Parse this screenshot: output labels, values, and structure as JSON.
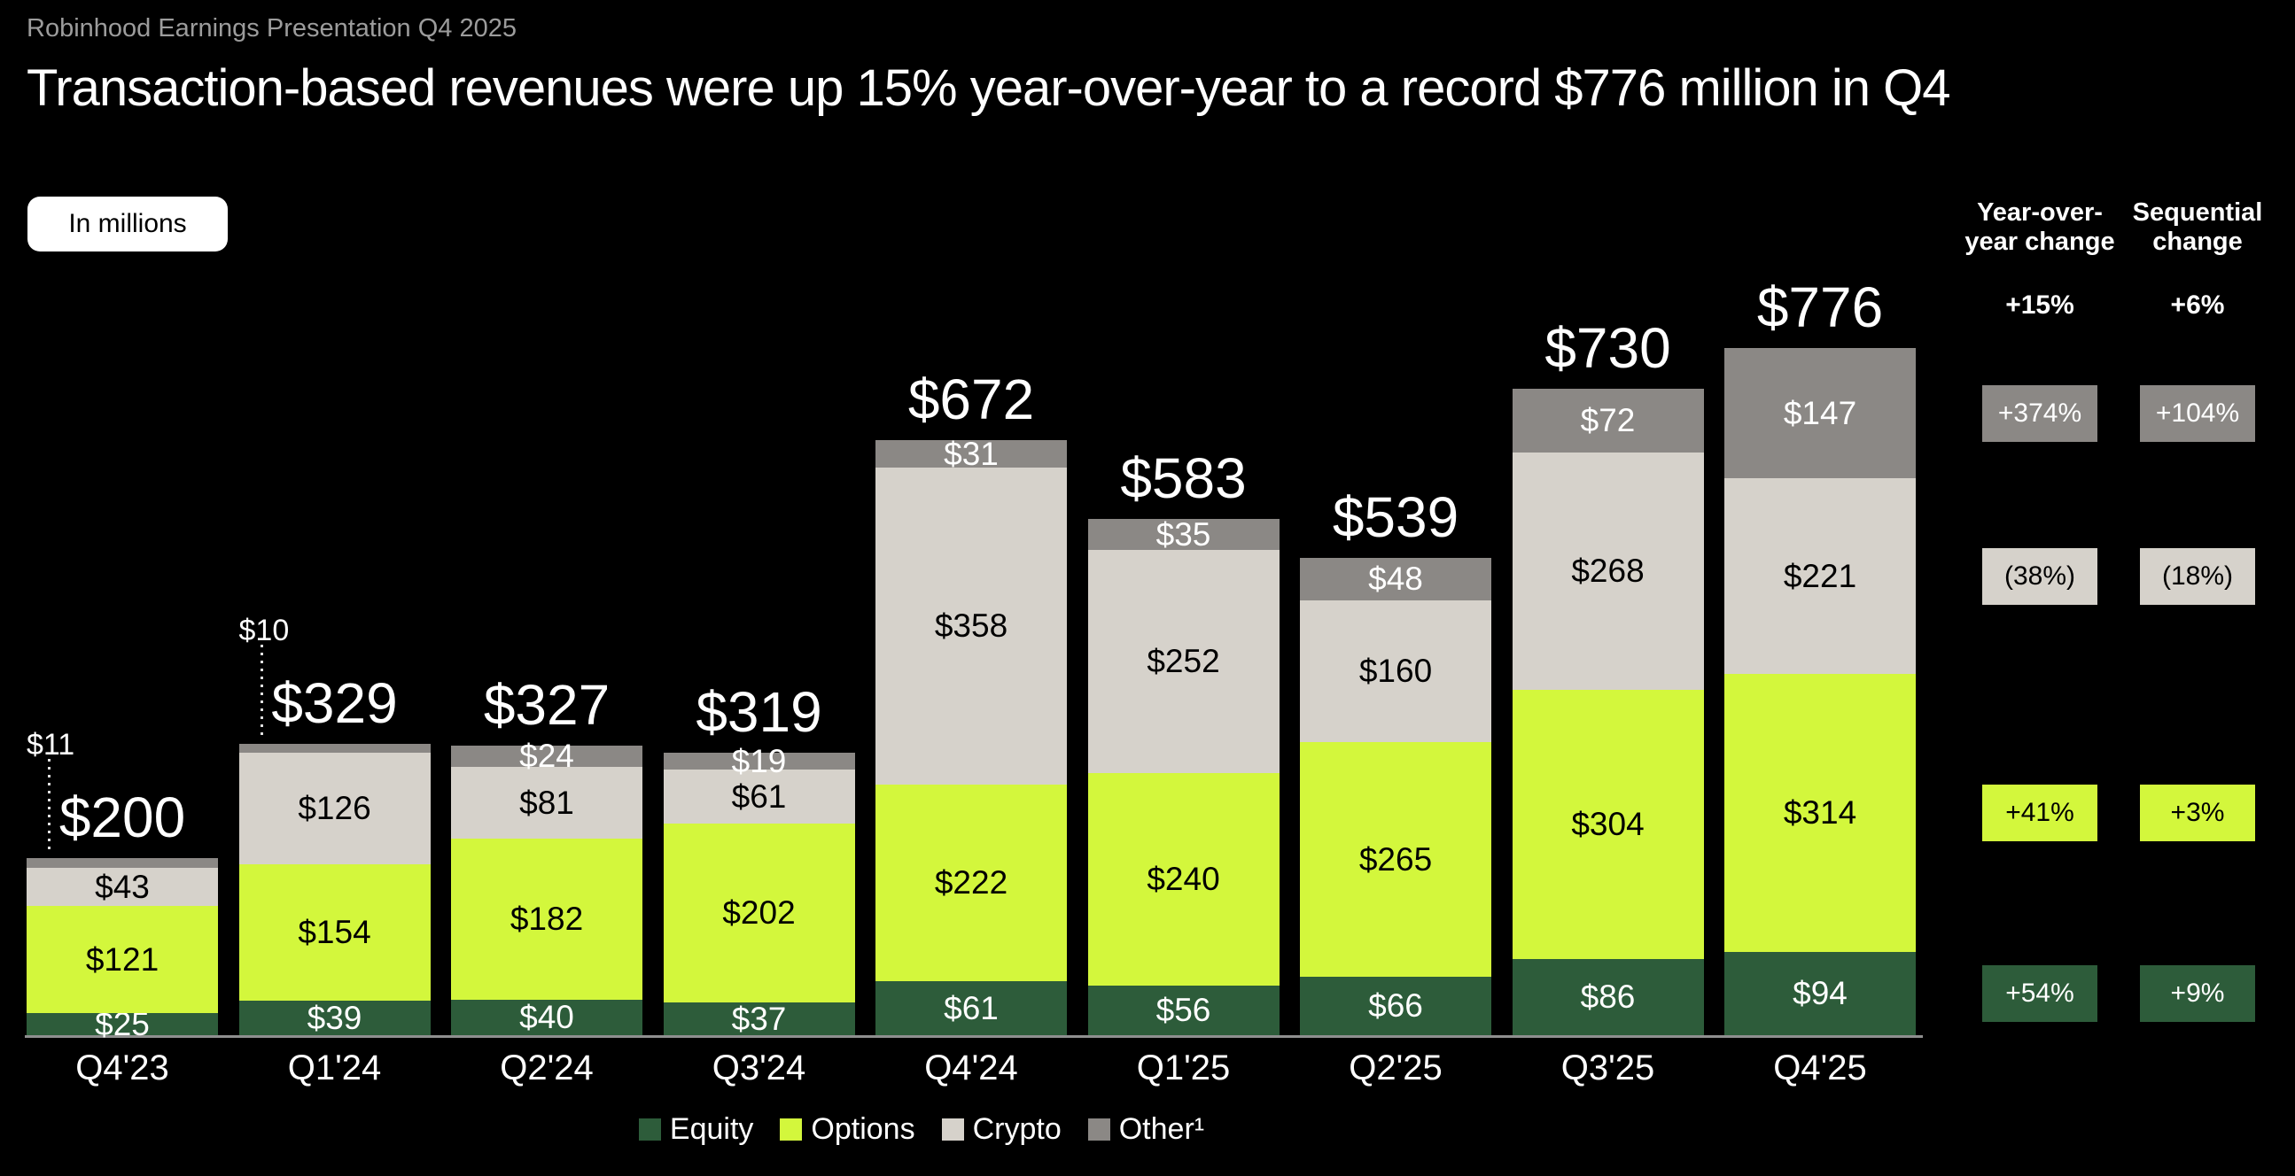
{
  "eyebrow": "Robinhood Earnings Presentation Q4 2025",
  "title": "Transaction-based revenues were up 15% year-over-year to a record $776 million in Q4",
  "units_button": "In millions",
  "chart_data": {
    "type": "bar",
    "stacked": true,
    "unit": "USD millions",
    "y_axis_visible": false,
    "ylim": [
      0,
      800
    ],
    "categories": [
      "Q4'23",
      "Q1'24",
      "Q2'24",
      "Q3'24",
      "Q4'24",
      "Q1'25",
      "Q2'25",
      "Q3'25",
      "Q4'25"
    ],
    "series": [
      {
        "name": "Equity",
        "color": "#2d5c3a",
        "label_color": "#ffffff",
        "values": [
          25,
          39,
          40,
          37,
          61,
          56,
          66,
          86,
          94
        ]
      },
      {
        "name": "Options",
        "color": "#d3f73c",
        "label_color": "#000000",
        "values": [
          121,
          154,
          182,
          202,
          222,
          240,
          265,
          304,
          314
        ]
      },
      {
        "name": "Crypto",
        "color": "#d6d2cb",
        "label_color": "#000000",
        "values": [
          43,
          126,
          81,
          61,
          358,
          252,
          160,
          268,
          221
        ]
      },
      {
        "name": "Other¹",
        "color": "#8b8885",
        "label_color": "#ffffff",
        "values": [
          11,
          10,
          24,
          19,
          31,
          35,
          48,
          72,
          147
        ]
      }
    ],
    "totals": [
      200,
      329,
      327,
      319,
      672,
      583,
      539,
      730,
      776
    ],
    "callout_quarters": [
      0,
      1
    ],
    "value_prefix": "$",
    "legend_position": "bottom"
  },
  "changes": {
    "col1_header_line1": "Year-over-",
    "col1_header_line2": "year change",
    "col2_header_line1": "Sequential",
    "col2_header_line2": "change",
    "col1_total": "+15%",
    "col2_total": "+6%",
    "rows": [
      {
        "segment": "Other",
        "yoy": "+374%",
        "seq": "+104%",
        "bg": "#8b8885",
        "fg": "#ffffff"
      },
      {
        "segment": "Crypto",
        "yoy": "(38%)",
        "seq": "(18%)",
        "bg": "#d6d2cb",
        "fg": "#000000"
      },
      {
        "segment": "Options",
        "yoy": "+41%",
        "seq": "+3%",
        "bg": "#d3f73c",
        "fg": "#000000"
      },
      {
        "segment": "Equity",
        "yoy": "+54%",
        "seq": "+9%",
        "bg": "#2d5c3a",
        "fg": "#ffffff"
      }
    ]
  }
}
